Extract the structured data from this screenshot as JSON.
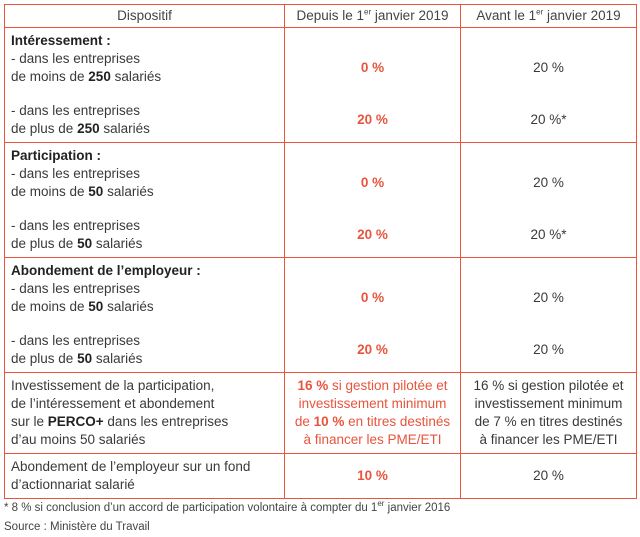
{
  "headers": {
    "col1": "Dispositif",
    "col2_pre": "Depuis le 1",
    "col2_sup": "er",
    "col2_post": " janvier 2019",
    "col3_pre": "Avant le 1",
    "col3_sup": "er",
    "col3_post": " janvier 2019"
  },
  "interessement": {
    "title": "Intéressement :",
    "r1_l1": "- dans les entreprises",
    "r1_l2_pre": "de moins de ",
    "r1_l2_bold": "250",
    "r1_l2_post": " salariés",
    "r1_new": "0 %",
    "r1_old": "20 %",
    "r2_l1": "- dans les entreprises",
    "r2_l2_pre": "de plus de ",
    "r2_l2_bold": "250",
    "r2_l2_post": " salariés",
    "r2_new": "20 %",
    "r2_old": "20 %*"
  },
  "participation": {
    "title": "Participation :",
    "r1_l1": "- dans les entreprises",
    "r1_l2_pre": "de moins de ",
    "r1_l2_bold": "50",
    "r1_l2_post": " salariés",
    "r1_new": "0 %",
    "r1_old": "20 %",
    "r2_l1": "- dans les entreprises",
    "r2_l2_pre": "de plus de ",
    "r2_l2_bold": "50",
    "r2_l2_post": " salariés",
    "r2_new": "20 %",
    "r2_old": "20 %*"
  },
  "abondement": {
    "title": "Abondement de l’employeur :",
    "r1_l1": "- dans les entreprises",
    "r1_l2_pre": "de moins de ",
    "r1_l2_bold": "50",
    "r1_l2_post": " salariés",
    "r1_new": "0 %",
    "r1_old": "20 %",
    "r2_l1": "- dans les entreprises",
    "r2_l2_pre": "de plus de ",
    "r2_l2_bold": "50",
    "r2_l2_post": " salariés",
    "r2_new": "20 %",
    "r2_old": "20 %"
  },
  "perco": {
    "l1": "Investissement de la participation,",
    "l2": "de l’intéressement et abondement",
    "l3_pre": "sur le ",
    "l3_bold": "PERCO+",
    "l3_post": " dans les entreprises",
    "l4": "d’au moins 50 salariés",
    "new_l1_bold": "16 %",
    "new_l1_post": " si gestion pilotée et",
    "new_l2": "investissement minimum",
    "new_l3_pre": "de ",
    "new_l3_bold": "10 %",
    "new_l3_post": " en titres destinés",
    "new_l4": "à financer les PME/ETI",
    "old_l1": "16 % si gestion pilotée et",
    "old_l2": "investissement minimum",
    "old_l3": "de 7 % en titres destinés",
    "old_l4": "à financer les PME/ETI"
  },
  "fond": {
    "l1": "Abondement de l’employeur sur un fond",
    "l2": "d’actionnariat salarié",
    "new": "10 %",
    "old": "20 %"
  },
  "footnote": {
    "pre": "* 8 % si conclusion d’un accord de participation volontaire à compter du 1",
    "sup": "er",
    "post": " janvier 2016"
  },
  "source": "Source : Ministère du Travail",
  "colors": {
    "accent": "#e8543c",
    "text": "#3a3a3a"
  }
}
